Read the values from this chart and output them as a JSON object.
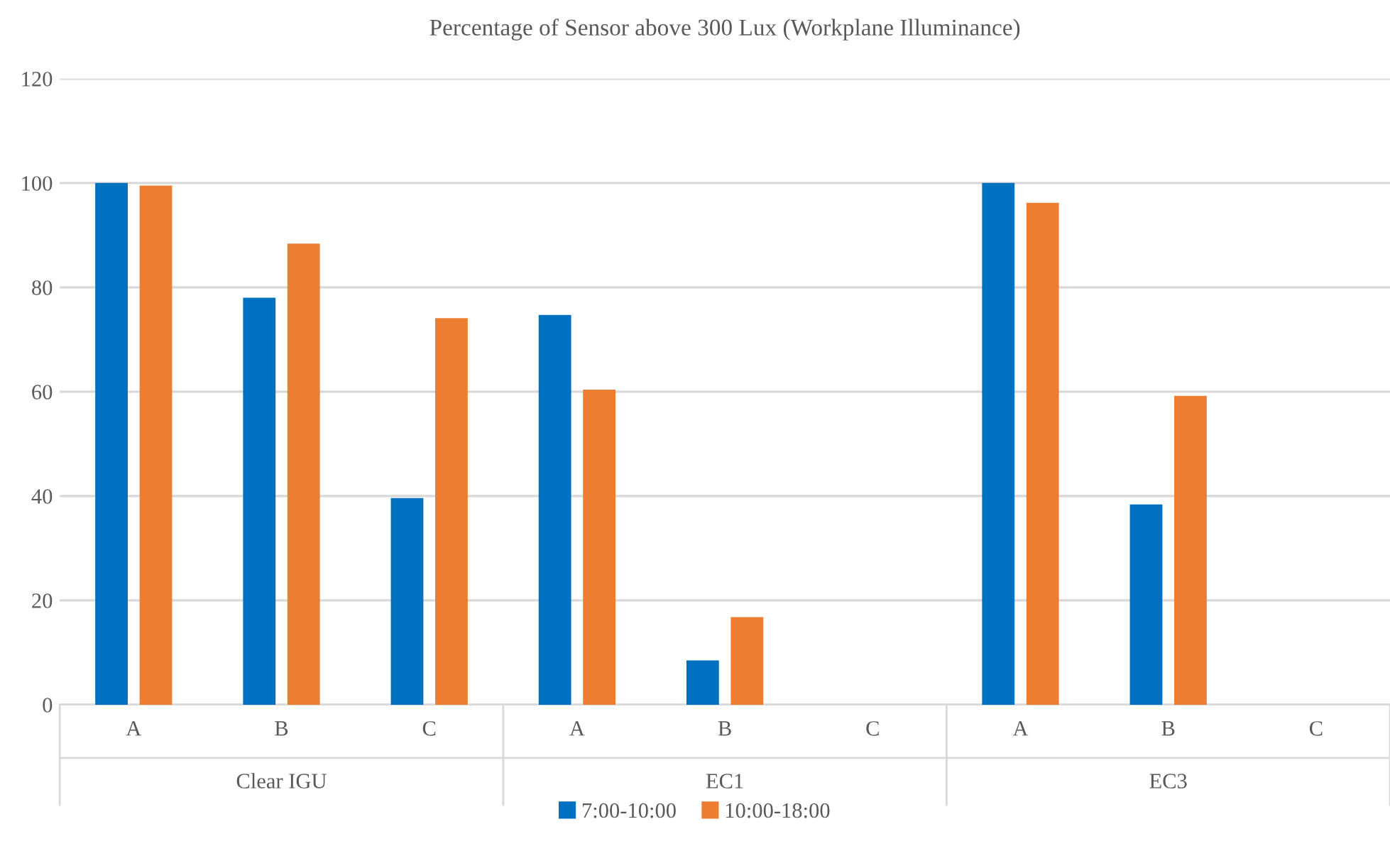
{
  "chart_data": {
    "type": "bar",
    "title": "Percentage of Sensor above 300 Lux (Workplane Illuminance)",
    "categories": [
      "A",
      "B",
      "C",
      "A",
      "B",
      "C",
      "A",
      "B",
      "C"
    ],
    "annotations": [
      "Clear IGU",
      "EC1",
      "EC3"
    ],
    "series": [
      {
        "name": "7:00-10:00",
        "color": "#0070c0",
        "values": [
          100,
          78,
          39.6,
          74.7,
          8.5,
          0,
          100,
          38.4,
          0
        ]
      },
      {
        "name": "10:00-18:00",
        "color": "#ed7d31",
        "values": [
          99.5,
          88.4,
          74.1,
          60.4,
          16.8,
          0,
          96.2,
          59.2,
          0
        ]
      }
    ],
    "ylim": [
      0,
      120
    ],
    "yticks": [
      0,
      20,
      40,
      60,
      80,
      100,
      120
    ],
    "grid": "y",
    "legend": "bottom"
  }
}
